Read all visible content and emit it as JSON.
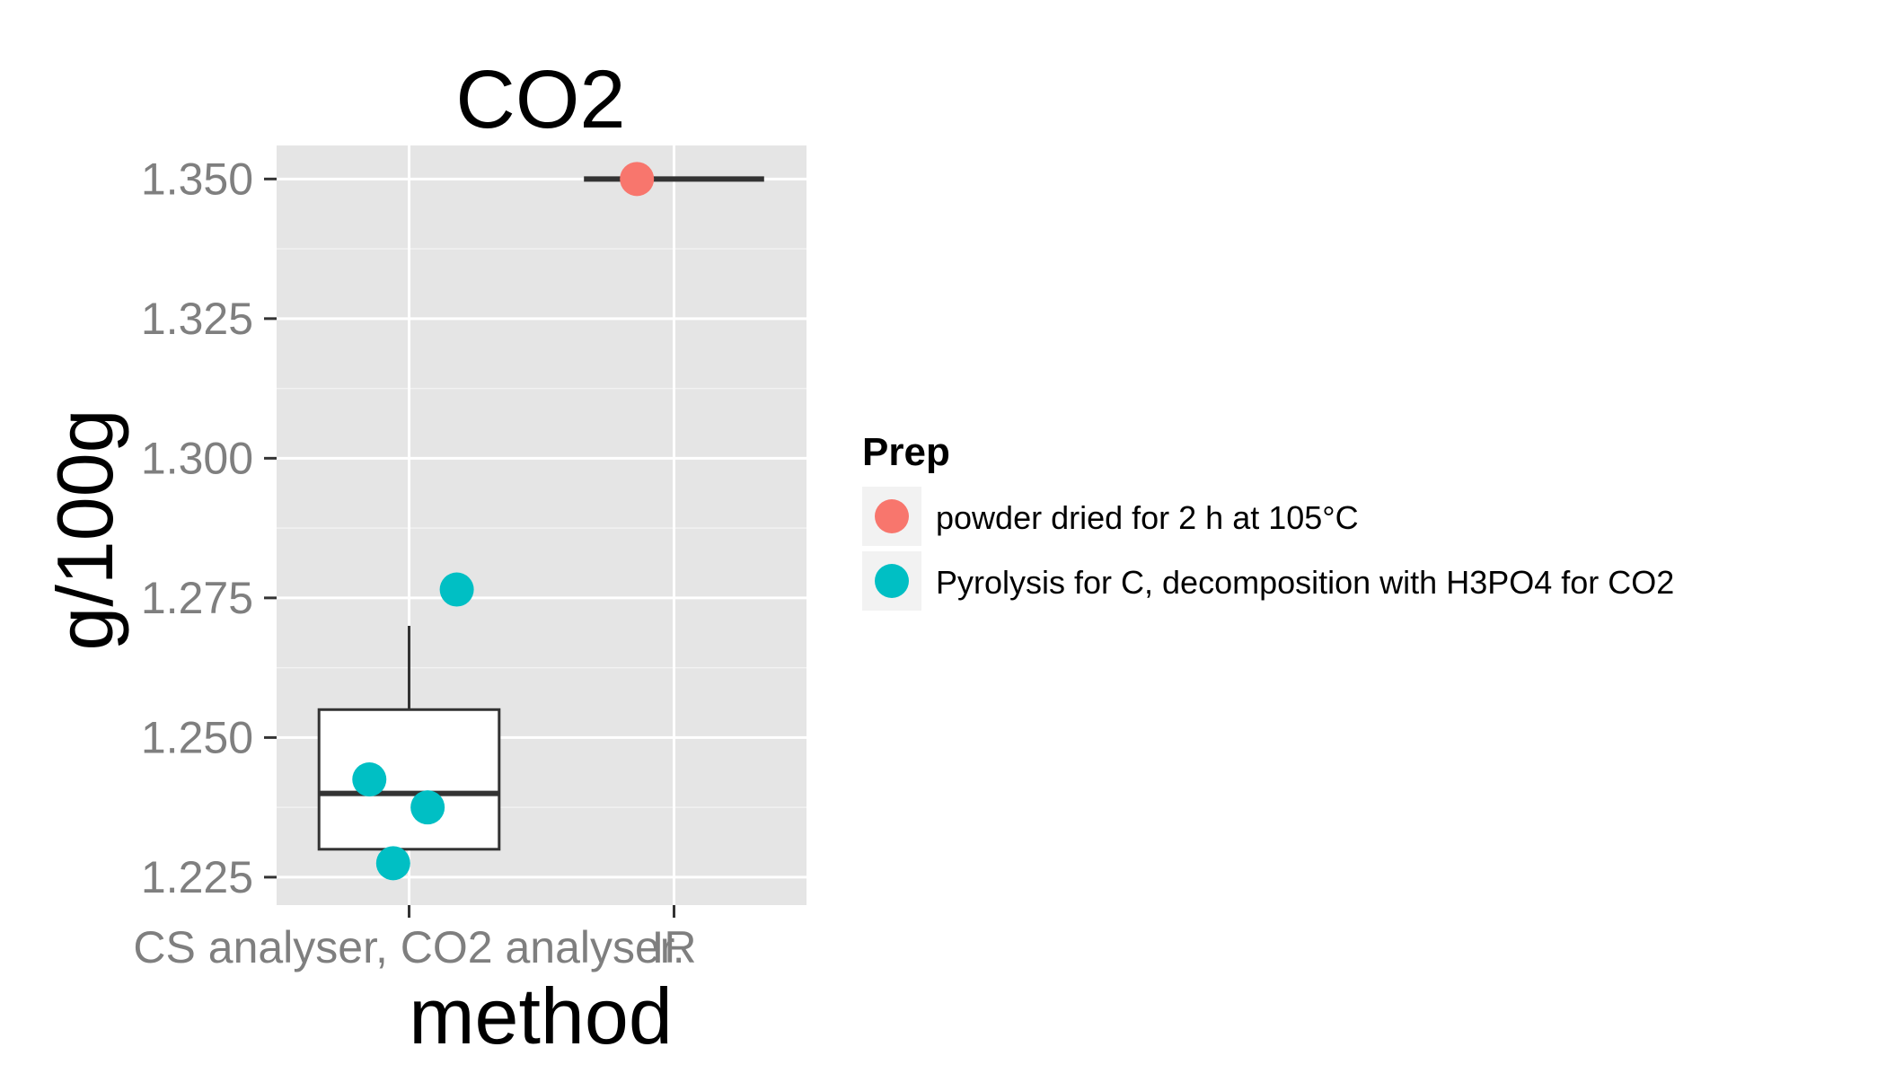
{
  "chart_data": {
    "type": "boxplot",
    "title": "CO2",
    "xlabel": "method",
    "ylabel": "g/100g",
    "categories": [
      "CS analyser, CO2 analyser.",
      "IR"
    ],
    "ylim": [
      1.22,
      1.356
    ],
    "yticks": [
      1.225,
      1.25,
      1.275,
      1.3,
      1.325,
      1.35
    ],
    "ytick_labels": [
      "1.225",
      "1.250",
      "1.275",
      "1.300",
      "1.325",
      "1.350"
    ],
    "grid": true,
    "legend": {
      "title": "Prep",
      "placement": "right",
      "entries": [
        {
          "label": "powder dried for 2 h at 105°C",
          "color": "#F8766D"
        },
        {
          "label": "Pyrolysis for C, decomposition with H3PO4 for CO2",
          "color": "#00BFC4"
        }
      ]
    },
    "boxes": [
      {
        "category": "CS analyser, CO2 analyser.",
        "min": 1.23,
        "q1": 1.23,
        "median": 1.24,
        "q3": 1.255,
        "max": 1.27
      },
      {
        "category": "IR",
        "min": 1.35,
        "q1": 1.35,
        "median": 1.35,
        "q3": 1.35,
        "max": 1.35
      }
    ],
    "points": [
      {
        "category": "CS analyser, CO2 analyser.",
        "value": 1.2425,
        "prep": "Pyrolysis for C, decomposition with H3PO4 for CO2"
      },
      {
        "category": "CS analyser, CO2 analyser.",
        "value": 1.2375,
        "prep": "Pyrolysis for C, decomposition with H3PO4 for CO2"
      },
      {
        "category": "CS analyser, CO2 analyser.",
        "value": 1.2275,
        "prep": "Pyrolysis for C, decomposition with H3PO4 for CO2"
      },
      {
        "category": "CS analyser, CO2 analyser.",
        "value": 1.2765,
        "prep": "Pyrolysis for C, decomposition with H3PO4 for CO2"
      },
      {
        "category": "IR",
        "value": 1.35,
        "prep": "powder dried for 2 h at 105°C"
      }
    ],
    "colors": {
      "panel_background": "#E5E5E5",
      "grid": "#FFFFFF",
      "tick_label": "#7F7F7F",
      "box_line": "#333333"
    }
  }
}
